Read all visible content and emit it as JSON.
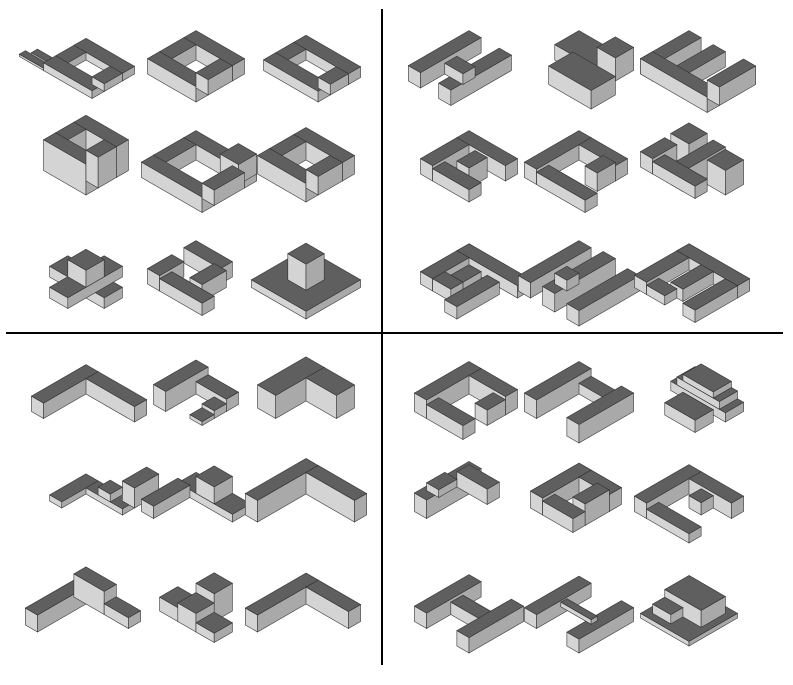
{
  "palette": {
    "top": "#5f5f5f",
    "left": "#d4d4d4",
    "right": "#a9a9a9",
    "edge": "#333333",
    "divider": "#000000"
  },
  "quadrants": [
    {
      "id": "top-left",
      "models": [
        "courtyard-stair",
        "courtyard-block",
        "ring-block",
        "layered-courtyard",
        "large-courtyard",
        "arched-courtyard",
        "cross-tower",
        "twisted-courtyard",
        "tower-on-plinth"
      ]
    },
    {
      "id": "top-right",
      "models": [
        "double-bar",
        "interlocked-blocks",
        "comb-block",
        "spiral-courtyard",
        "folded-u",
        "fragmented-cluster",
        "perforated-ring",
        "twin-comb",
        "perforated-cluster"
      ]
    },
    {
      "id": "bottom-left",
      "models": [
        "l-bar",
        "stepped-l",
        "tall-l",
        "stair-l",
        "t-bar",
        "wide-l",
        "peak-l",
        "stepped-peak",
        "slab-l"
      ]
    },
    {
      "id": "bottom-right",
      "models": [
        "hooked-block",
        "u-bar",
        "stacked-plates",
        "angled-bar",
        "cranked-block",
        "terraced-c",
        "u-plan",
        "bridged-u",
        "plinth-stack"
      ]
    }
  ]
}
